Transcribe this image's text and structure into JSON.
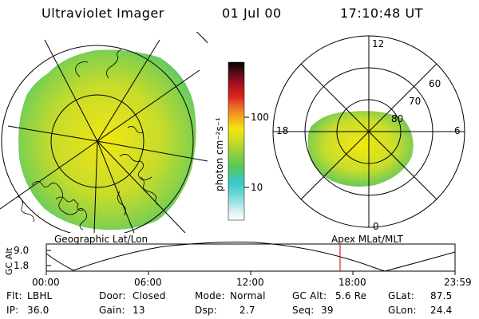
{
  "header": {
    "title": "Ultraviolet Imager",
    "date": "01 Jul 00",
    "time": "17:10:48 UT"
  },
  "colorbar": {
    "unit_label": "photon cm⁻²s⁻¹",
    "ticks": [
      "100",
      "10"
    ],
    "scale": "log",
    "colors": [
      "#ffffff",
      "#d8eef0",
      "#6cd8d8",
      "#38c8c8",
      "#58c858",
      "#9ad23a",
      "#d6e020",
      "#f3e60c",
      "#f2b21c",
      "#f07c28",
      "#d8281c",
      "#a8101c",
      "#4c0a1a",
      "#000000"
    ]
  },
  "left_panel": {
    "label": "Geographic Lat/Lon"
  },
  "right_panel": {
    "label": "Apex MLat/MLT",
    "mlt_labels": {
      "top": "12",
      "left": "18",
      "right": "6",
      "bottom": "0"
    },
    "mlat_labels": [
      "60",
      "70",
      "80"
    ]
  },
  "altitude_plot": {
    "ylabel": "GC Alt",
    "yticks": [
      "9.0",
      "1.8"
    ],
    "xticks": [
      "00:00",
      "06:00",
      "12:00",
      "18:00",
      "23:59"
    ],
    "current_marker_color": "#c00000"
  },
  "info": {
    "row1": [
      {
        "key": "Flt:",
        "value": "LBHL"
      },
      {
        "key": "Door:",
        "value": "Closed"
      },
      {
        "key": "Mode:",
        "value": "Normal"
      },
      {
        "key": "GC Alt:",
        "value": "5.6 Re"
      },
      {
        "key": "GLat:",
        "value": "87.5"
      }
    ],
    "row2": [
      {
        "key": "IP:",
        "value": "36.0"
      },
      {
        "key": "Gain:",
        "value": "13"
      },
      {
        "key": "Dsp:",
        "value": "2.7"
      },
      {
        "key": "Seq:",
        "value": "39"
      },
      {
        "key": "GLon:",
        "value": "24.4"
      }
    ]
  }
}
